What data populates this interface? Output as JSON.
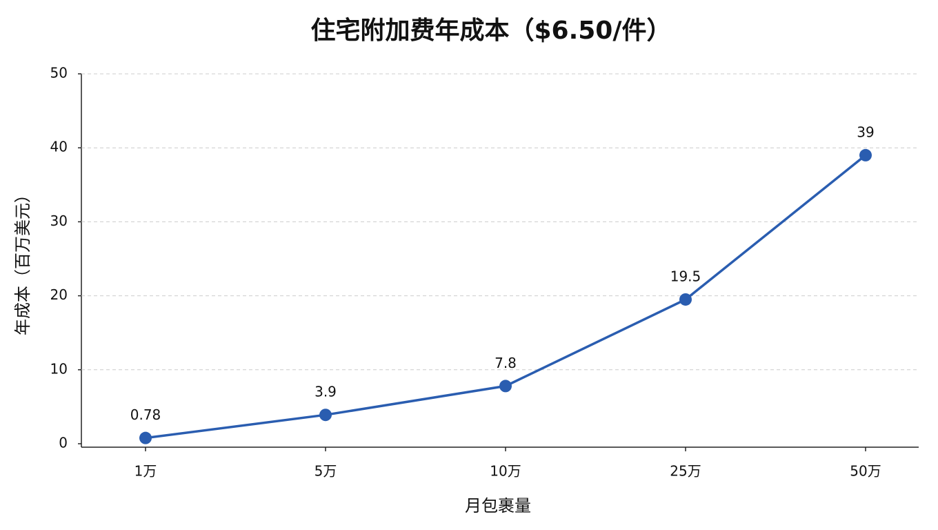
{
  "chart_data": {
    "type": "line",
    "title": "住宅附加费年成本（$6.50/件）",
    "x_label": "月包裹量",
    "y_label": "年成本（百万美元）",
    "categories": [
      "1万",
      "5万",
      "10万",
      "25万",
      "50万"
    ],
    "values": [
      0.78,
      3.9,
      7.8,
      19.5,
      39
    ],
    "color": "#2a5db0",
    "ylim": [
      0,
      50
    ],
    "yticks": [
      0,
      10,
      20,
      30,
      40,
      50
    ],
    "grid": true
  }
}
